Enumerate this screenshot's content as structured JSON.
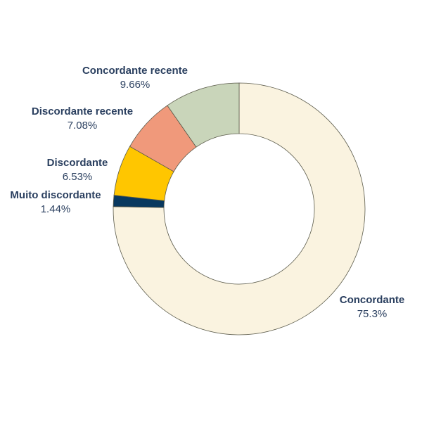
{
  "chart_data": {
    "type": "pie",
    "hole": true,
    "slices": [
      {
        "label": "Concordante",
        "value": 75.3,
        "value_label": "75.3%",
        "color": "#faf3e0"
      },
      {
        "label": "Muito discordante",
        "value": 1.44,
        "value_label": "1.44%",
        "color": "#08385f"
      },
      {
        "label": "Discordante",
        "value": 6.53,
        "value_label": "6.53%",
        "color": "#ffc600"
      },
      {
        "label": "Discordante recente",
        "value": 7.08,
        "value_label": "7.08%",
        "color": "#f0997b"
      },
      {
        "label": "Concordante recente",
        "value": 9.66,
        "value_label": "9.66%",
        "color": "#c9d5ba"
      }
    ],
    "slice_border_color": "#5a5a4a",
    "label_color": "#2a3f5f"
  }
}
